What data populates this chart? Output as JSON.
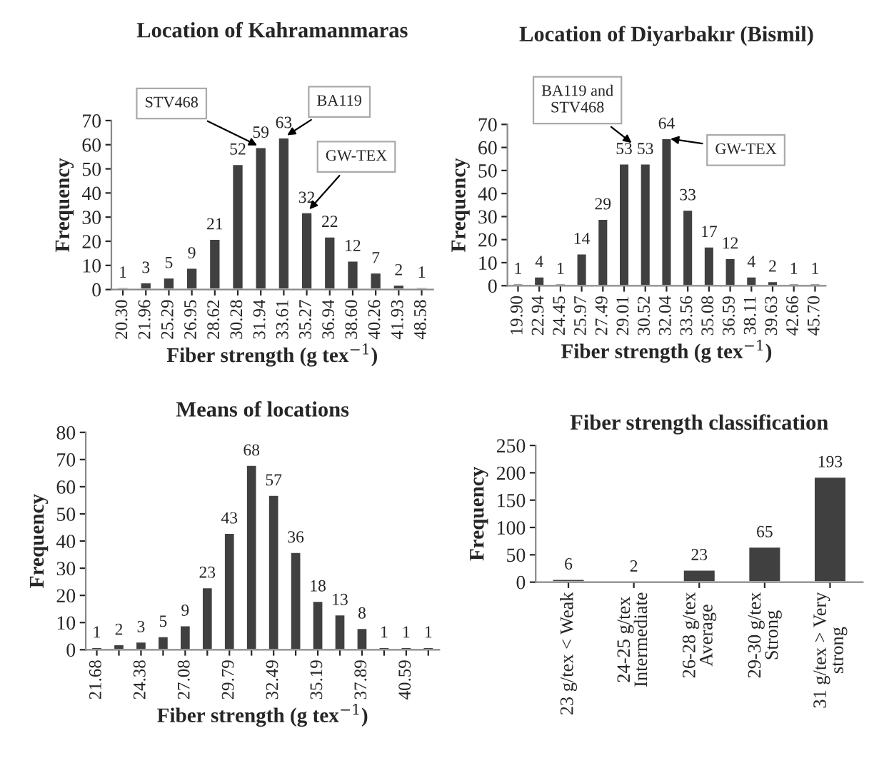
{
  "chart_data": [
    {
      "type": "bar",
      "title": "Location of Kahramanmaras",
      "xlabel": "Fiber strength (g tex$^{−1}$)",
      "ylabel": "Frequency",
      "categories": [
        "20.30",
        "21.96",
        "25.29",
        "26.95",
        "28.62",
        "30.28",
        "31.94",
        "33.61",
        "35.27",
        "36.94",
        "38.60",
        "40.26",
        "41.93",
        "48.58"
      ],
      "values": [
        1,
        3,
        5,
        9,
        21,
        52,
        59,
        63,
        32,
        22,
        12,
        7,
        2,
        1
      ],
      "color": "#404040",
      "ylim": [
        0,
        70
      ],
      "yticks": [
        0,
        10,
        20,
        30,
        40,
        50,
        60,
        70
      ],
      "data_labels": true,
      "grid": false,
      "legend": false,
      "annotations": [
        {
          "text": "STV468",
          "x": "31.94",
          "y": 59
        },
        {
          "text": "BA119",
          "x": "33.61",
          "y": 63
        },
        {
          "text": "GW-TEX",
          "x": "35.27",
          "y": 32
        }
      ]
    },
    {
      "type": "bar",
      "title": "Location of Diyarbakır (Bismil)",
      "xlabel": "Fiber strength (g tex$^{−1}$)",
      "ylabel": "Frequency",
      "categories": [
        "19.90",
        "22.94",
        "24.45",
        "25.97",
        "27.49",
        "29.01",
        "30.52",
        "32.04",
        "33.56",
        "35.08",
        "36.59",
        "38.11",
        "39.63",
        "42.66",
        "45.70"
      ],
      "values": [
        1,
        4,
        1,
        14,
        29,
        53,
        53,
        64,
        33,
        17,
        12,
        4,
        2,
        1,
        1
      ],
      "color": "#404040",
      "ylim": [
        0,
        70
      ],
      "yticks": [
        0,
        10,
        20,
        30,
        40,
        50,
        60,
        70
      ],
      "data_labels": true,
      "grid": false,
      "legend": false,
      "annotations": [
        "BA119 and\nSTV468",
        {
          "text": "GW-TEX",
          "x": "32.04",
          "y": 64
        }
      ]
    },
    {
      "type": "bar",
      "title": "Means of locations",
      "xlabel": "Fiber strength (g tex$^{−1}$)",
      "ylabel": "Frequency",
      "categories": [
        "21.68",
        null,
        "24.38",
        null,
        "27.08",
        null,
        "29.79",
        null,
        "32.49",
        null,
        "35.19",
        null,
        "37.89",
        null,
        "40.59",
        null
      ],
      "values": [
        1,
        2,
        3,
        5,
        9,
        23,
        43,
        68,
        57,
        36,
        18,
        13,
        8,
        1,
        1,
        1
      ],
      "color": "#404040",
      "ylim": [
        0,
        80
      ],
      "yticks": [
        0,
        10,
        20,
        30,
        40,
        50,
        60,
        70,
        80
      ],
      "data_labels": true,
      "grid": false,
      "legend": false
    },
    {
      "type": "bar",
      "title": "Fiber strength classification",
      "ylabel": "Frequency",
      "categories": [
        "23 g/tex < Weak",
        "24-25 g/tex\nIntermediate",
        "26-28 g/tex\nAverage",
        "29-30 g/tex\nStrong",
        "31 g/tex > Very\nstrong"
      ],
      "values": [
        6,
        2,
        23,
        65,
        193
      ],
      "color": "#404040",
      "ylim": [
        0,
        250
      ],
      "yticks": [
        0,
        50,
        100,
        150,
        200,
        250
      ],
      "data_labels": true,
      "grid": false,
      "legend": false
    }
  ]
}
